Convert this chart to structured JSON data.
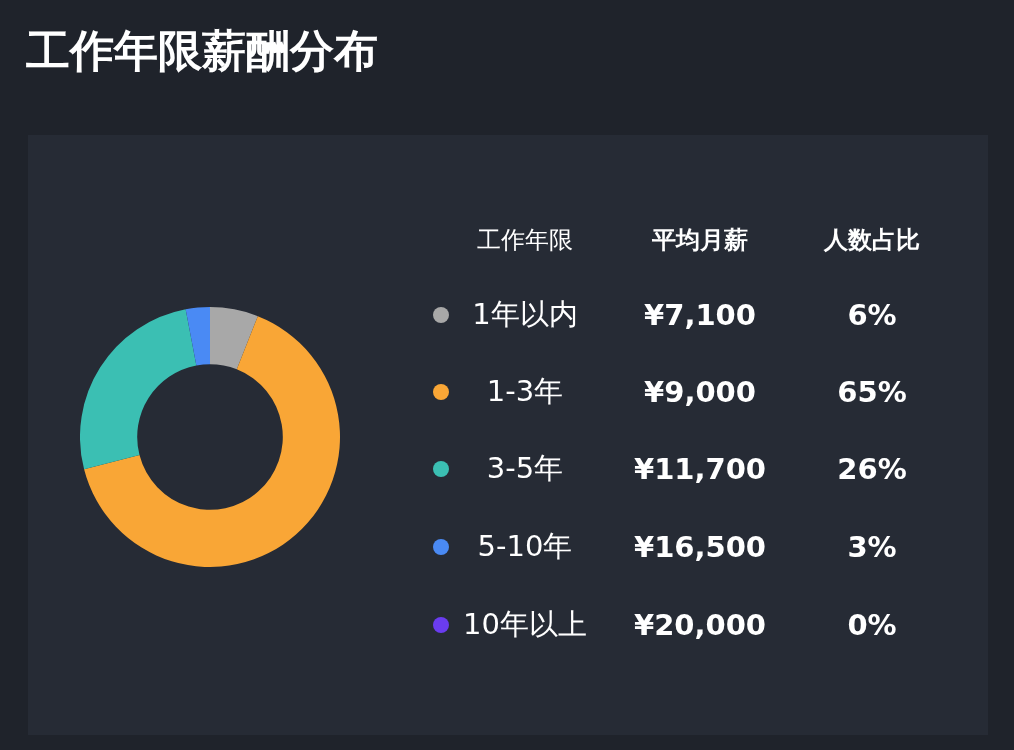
{
  "chart_data": {
    "type": "donut",
    "title": "工作年限薪酬分布",
    "legend_title": "工作年限",
    "categories": [
      "1年以内",
      "1-3年",
      "3-5年",
      "5-10年",
      "10年以上"
    ],
    "values": [
      6,
      65,
      26,
      3,
      0
    ],
    "colors": [
      "#a8a8a8",
      "#f9a636",
      "#3bbfb3",
      "#4a8af4",
      "#6a3cf0"
    ],
    "value_labels": [
      "6%",
      "65%",
      "26%",
      "3%",
      "0%"
    ],
    "legend": "right",
    "annotations": [
      "平均月薪",
      "人数占比",
      "¥7,100",
      "¥9,000",
      "¥11,700",
      "¥16,500",
      "¥20,000"
    ]
  }
}
